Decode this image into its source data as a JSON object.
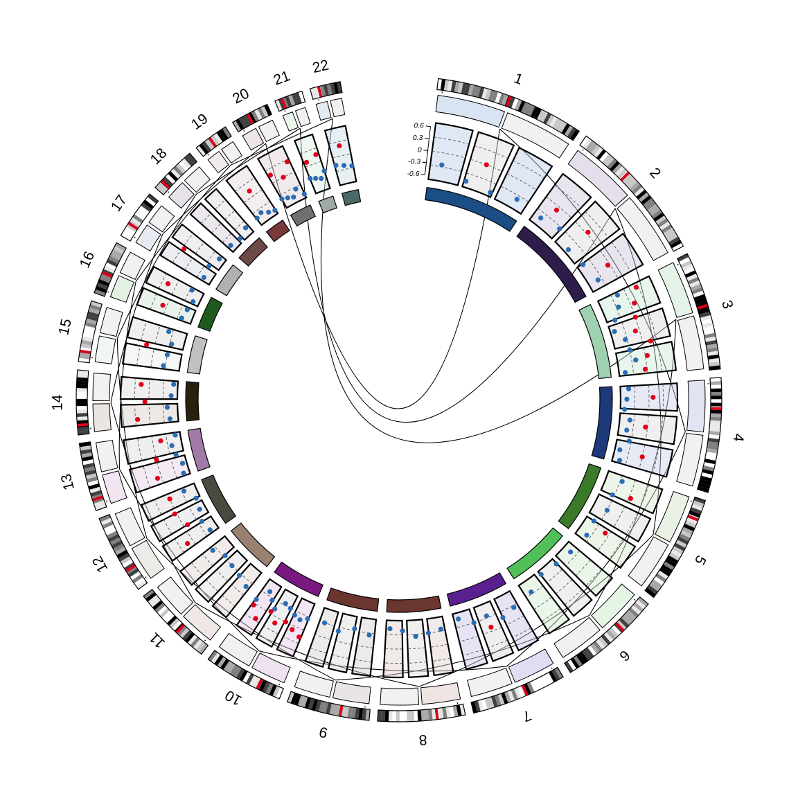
{
  "chart_data": {
    "type": "circos",
    "title": "",
    "chromosomes": [
      "1",
      "2",
      "3",
      "4",
      "5",
      "6",
      "7",
      "8",
      "9",
      "10",
      "11",
      "12",
      "13",
      "14",
      "15",
      "16",
      "17",
      "18",
      "19",
      "20",
      "21",
      "22"
    ],
    "chromosome_lengths_mb": [
      249,
      243,
      198,
      191,
      181,
      171,
      159,
      145,
      138,
      134,
      135,
      133,
      114,
      107,
      102,
      90,
      83,
      80,
      59,
      64,
      47,
      51
    ],
    "centromere_fraction": [
      0.49,
      0.38,
      0.46,
      0.27,
      0.19,
      0.35,
      0.42,
      0.32,
      0.35,
      0.3,
      0.4,
      0.27,
      0.16,
      0.15,
      0.17,
      0.4,
      0.29,
      0.19,
      0.46,
      0.44,
      0.26,
      0.28
    ],
    "scatter_axis": {
      "ticks": [
        0.6,
        0.3,
        0,
        -0.3,
        -0.6
      ],
      "tick_labels": [
        "0.6",
        "0.3",
        "0",
        "-0.3",
        "-0.6"
      ],
      "range": [
        -0.6,
        0.6
      ]
    },
    "scatter_series": [
      {
        "color": "#2a6db5",
        "role": "values at or below zero"
      },
      {
        "color": "#e0001b",
        "role": "values above zero"
      }
    ],
    "scatter_points_per_chromosome": [
      {
        "blue": [
          -0.3,
          -0.55,
          -0.6,
          -0.45
        ],
        "red": [
          0.0
        ]
      },
      {
        "blue": [
          -0.5,
          -0.4,
          -0.6,
          -0.55,
          -0.45
        ],
        "red": [
          -0.1,
          0.05,
          -0.05
        ]
      },
      {
        "blue": [
          -0.2,
          -0.3,
          -0.5,
          -0.6,
          -0.4,
          -0.35,
          -0.25,
          -0.55
        ],
        "red": [
          0.3,
          0.1,
          0.0,
          -0.1,
          0.2,
          0.05,
          -0.05
        ]
      },
      {
        "blue": [
          -0.5,
          -0.55,
          -0.6,
          -0.45,
          -0.5,
          -0.4,
          -0.58,
          -0.52
        ],
        "red": [
          0.1,
          -0.05,
          0.0
        ]
      },
      {
        "blue": [
          -0.3,
          -0.4,
          -0.35,
          -0.5,
          -0.45
        ],
        "red": [
          0.05,
          -0.1
        ]
      },
      {
        "blue": [
          -0.5,
          -0.55,
          -0.6,
          -0.4
        ],
        "red": []
      },
      {
        "blue": [
          -0.3,
          -0.2,
          -0.4,
          -0.35,
          -0.55
        ],
        "red": [
          -0.1
        ]
      },
      {
        "blue": [
          -0.4,
          -0.35,
          -0.3,
          -0.45,
          -0.5
        ],
        "red": []
      },
      {
        "blue": [
          -0.3,
          -0.4,
          -0.25,
          -0.35
        ],
        "red": []
      },
      {
        "blue": [
          -0.3,
          -0.2,
          -0.25,
          -0.35,
          -0.4,
          -0.15,
          -0.3,
          -0.45,
          -0.1
        ],
        "red": [
          0.2,
          0.1,
          0.0,
          0.15,
          -0.05,
          0.3,
          0.05
        ]
      },
      {
        "blue": [
          -0.2,
          -0.3,
          -0.35,
          -0.4,
          -0.25
        ],
        "red": []
      },
      {
        "blue": [
          -0.5,
          -0.45,
          -0.55,
          -0.6,
          -0.4
        ],
        "red": [
          0.15,
          -0.1,
          0.05,
          0.0
        ]
      },
      {
        "blue": [
          -0.55,
          -0.6,
          -0.5,
          -0.45,
          -0.58
        ],
        "red": [
          0.1,
          0.0,
          -0.2
        ]
      },
      {
        "blue": [
          -0.5,
          -0.45,
          -0.55,
          -0.6
        ],
        "red": [
          0.3,
          0.1,
          0.2
        ]
      },
      {
        "blue": [
          -0.3,
          -0.35,
          -0.4,
          -0.25
        ],
        "red": [
          0.2
        ]
      },
      {
        "blue": [
          -0.45,
          -0.5,
          -0.55,
          -0.4
        ],
        "red": [
          0.1,
          0.2
        ]
      },
      {
        "blue": [
          -0.5,
          -0.45,
          -0.55
        ],
        "red": [
          0.3
        ]
      },
      {
        "blue": [
          -0.55,
          -0.6,
          -0.5
        ],
        "red": []
      },
      {
        "blue": [
          -0.5,
          -0.45,
          -0.55,
          -0.6
        ],
        "red": [
          0.15
        ]
      },
      {
        "blue": [
          -0.45,
          -0.5,
          -0.55,
          -0.4,
          -0.6
        ],
        "red": [
          0.2,
          0.0,
          0.3
        ]
      },
      {
        "blue": [
          -0.3,
          -0.35,
          -0.4,
          -0.25
        ],
        "red": [
          0.1,
          0.2
        ]
      },
      {
        "blue": [
          -0.2,
          -0.25,
          -0.3
        ],
        "red": [
          0.25
        ]
      }
    ],
    "inner_segment_colors": [
      "#1a4e85",
      "#2e1c4a",
      "#9fd0b0",
      "#1c3a7a",
      "#3a7a28",
      "#52c058",
      "#5a2090",
      "#6b3530",
      "#6b3530",
      "#7a1a80",
      "#9a8070",
      "#4a4a40",
      "#a07aa8",
      "#2a2010",
      "#c0c0c0",
      "#1e5a1e",
      "#b0b0b0",
      "#6b4a48",
      "#7a3a3a",
      "#707070",
      "#a0a8a8",
      "#4a6a6a"
    ],
    "track_colors": [
      "#b8cde6",
      "#cfc5da",
      "#cde8d5",
      "#c8d0e8",
      "#d8e6cf",
      "#d0ecd0",
      "#c9c0e8",
      "#e0d0cc",
      "#d8d0d0",
      "#e4c8e4",
      "#e0d4d0",
      "#dedad4",
      "#e4d0e4",
      "#d8d0c8",
      "#e8ecec",
      "#d0e4d0",
      "#d4d8e4",
      "#d4c8d8",
      "#e4d8d8",
      "#e0d0d4",
      "#d8ecdc",
      "#c8dce4"
    ],
    "legend": {
      "placement": "none"
    },
    "grid": true
  }
}
